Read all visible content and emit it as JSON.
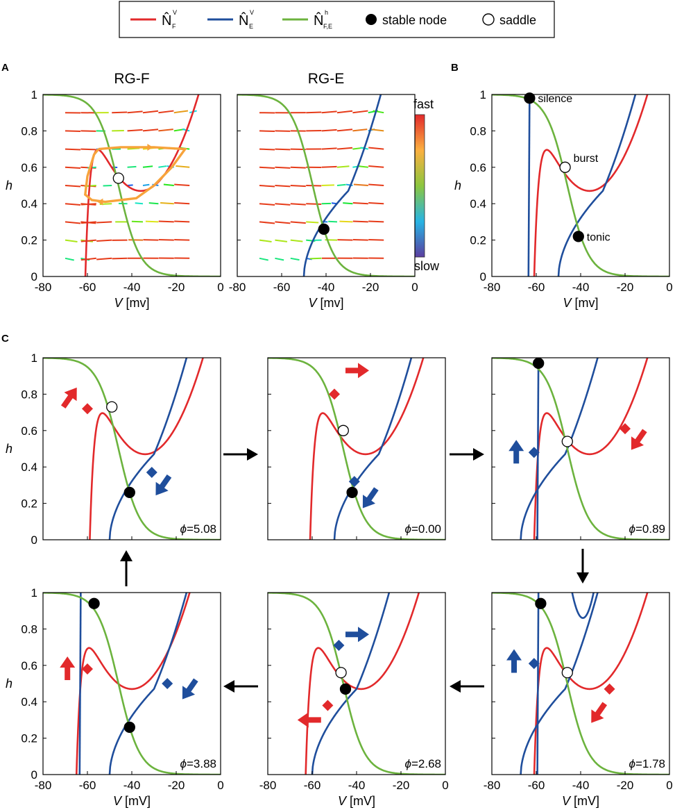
{
  "legend": [
    {
      "symbol": "N̂",
      "sup": "V",
      "sub": "F",
      "color": "#e2292b",
      "kind": "line"
    },
    {
      "symbol": "N̂",
      "sup": "V",
      "sub": "E",
      "color": "#1f4e9c",
      "kind": "line"
    },
    {
      "symbol": "N̂",
      "sup": "h",
      "sub": "F,E",
      "color": "#6cb33e",
      "kind": "line"
    },
    {
      "label": "stable node",
      "kind": "filled-circle"
    },
    {
      "label": "saddle",
      "kind": "open-circle"
    }
  ],
  "colors": {
    "red": "#e2292b",
    "blue": "#1f4e9c",
    "green": "#6cb33e",
    "orange": "#f7a33b"
  },
  "colorbar": {
    "top_label": "fast",
    "bottom_label": "slow"
  },
  "panel_letters": {
    "A": "A",
    "B": "B",
    "C": "C"
  },
  "chart_data": [
    {
      "id": "A-RG-F",
      "type": "line",
      "title": "RG-F",
      "xlabel_italic": "V",
      "xlabel_unit": " [mv]",
      "ylabel": "h",
      "xlim": [
        -80,
        0
      ],
      "ylim": [
        0,
        1
      ],
      "xticks": [
        "-80",
        "-60",
        "-40",
        "-20",
        "0"
      ],
      "yticks": [
        "0",
        "0.2",
        "0.4",
        "0.6",
        "0.8",
        "1"
      ],
      "series": [
        {
          "name": "N_F^V nullcline",
          "color": "red",
          "shift": 0
        },
        {
          "name": "N_F,E^h nullcline",
          "color": "green"
        }
      ],
      "vector_field": {
        "rows": [
          0.1,
          0.2,
          0.3,
          0.4,
          0.5,
          0.6,
          0.7,
          0.8,
          0.9
        ],
        "x_from": -70,
        "x_to": -10,
        "speed_scale": [
          "slow",
          "fast"
        ]
      },
      "trajectory": {
        "name": "bursting orbit",
        "color": "orange",
        "points": [
          [
            -55,
            0.7
          ],
          [
            -45,
            0.71
          ],
          [
            -30,
            0.71
          ],
          [
            -16,
            0.7
          ],
          [
            -22,
            0.6
          ],
          [
            -30,
            0.5
          ],
          [
            -38,
            0.43
          ],
          [
            -45,
            0.42
          ],
          [
            -52,
            0.41
          ],
          [
            -58,
            0.42
          ],
          [
            -61,
            0.45
          ],
          [
            -60,
            0.55
          ],
          [
            -57,
            0.67
          ],
          [
            -55,
            0.7
          ]
        ]
      },
      "points": [
        {
          "kind": "saddle",
          "V": -46,
          "h": 0.54
        }
      ]
    },
    {
      "id": "A-RG-E",
      "type": "line",
      "title": "RG-E",
      "xlabel_italic": "V",
      "xlabel_unit": " [mv]",
      "ylabel": "",
      "xlim": [
        -80,
        0
      ],
      "ylim": [
        0,
        1
      ],
      "xticks": [
        "-80",
        "-60",
        "-40",
        "-20",
        "0"
      ],
      "yticks": [],
      "series": [
        {
          "name": "N_E^V nullcline",
          "color": "blue",
          "shift": 0
        },
        {
          "name": "N_F,E^h nullcline",
          "color": "green"
        }
      ],
      "vector_field": {
        "rows": [
          0.1,
          0.2,
          0.3,
          0.4,
          0.5,
          0.6,
          0.7,
          0.8,
          0.9
        ],
        "x_from": -70,
        "x_to": -10,
        "speed_scale": [
          "slow",
          "fast"
        ]
      },
      "points": [
        {
          "kind": "stable",
          "V": -41,
          "h": 0.26
        }
      ]
    },
    {
      "id": "B",
      "type": "line",
      "xlabel_italic": "V",
      "xlabel_unit": " [mv]",
      "ylabel": "h",
      "xlim": [
        -80,
        0
      ],
      "ylim": [
        0,
        1
      ],
      "xticks": [
        "-80",
        "-60",
        "-40",
        "-20",
        "0"
      ],
      "yticks": [
        "0",
        "0.2",
        "0.4",
        "0.6",
        "0.8",
        "1"
      ],
      "series": [
        {
          "name": "N_F^V",
          "color": "red",
          "shift": 0
        },
        {
          "name": "N_E^V",
          "color": "blue",
          "shift": 0
        },
        {
          "name": "N_E^V (silent branch)",
          "color": "blue",
          "vert_at": -63
        },
        {
          "name": "N_F,E^h",
          "color": "green"
        }
      ],
      "points": [
        {
          "kind": "stable",
          "V": -63,
          "h": 0.98,
          "label": "silence"
        },
        {
          "kind": "saddle",
          "V": -47,
          "h": 0.6,
          "label": "burst"
        },
        {
          "kind": "stable",
          "V": -41,
          "h": 0.22,
          "label": "tonic"
        }
      ]
    },
    {
      "id": "C-5.08",
      "type": "line",
      "phi": "=5.08",
      "xlim": [
        -80,
        0
      ],
      "ylim": [
        0,
        1
      ],
      "ylabel": "h",
      "yticks": [
        "0",
        "0.2",
        "0.4",
        "0.6",
        "0.8",
        "1"
      ],
      "xticks": [],
      "series": [
        {
          "name": "N_F^V",
          "color": "red",
          "shift": 2
        },
        {
          "name": "N_E^V",
          "color": "blue",
          "shift": 0
        },
        {
          "name": "N_F,E^h",
          "color": "green"
        }
      ],
      "points": [
        {
          "kind": "saddle",
          "V": -49,
          "h": 0.73
        },
        {
          "kind": "stable",
          "V": -41,
          "h": 0.26
        }
      ],
      "diamonds": [
        {
          "color": "red",
          "V": -60,
          "h": 0.72
        },
        {
          "color": "blue",
          "V": -31,
          "h": 0.37
        }
      ],
      "arrows": [
        {
          "color": "red",
          "V": -68,
          "h": 0.78,
          "dir": "up-right"
        },
        {
          "color": "blue",
          "V": -26,
          "h": 0.3,
          "dir": "down-left"
        }
      ]
    },
    {
      "id": "C-0.00",
      "type": "line",
      "phi": "=0.00",
      "xlim": [
        -80,
        0
      ],
      "ylim": [
        0,
        1
      ],
      "yticks": [],
      "xticks": [],
      "series": [
        {
          "name": "N_F^V",
          "color": "red",
          "shift": 0
        },
        {
          "name": "N_E^V",
          "color": "blue",
          "shift": 0
        },
        {
          "name": "N_F,E^h",
          "color": "green"
        }
      ],
      "points": [
        {
          "kind": "saddle",
          "V": -46,
          "h": 0.6
        },
        {
          "kind": "stable",
          "V": -42,
          "h": 0.26
        }
      ],
      "diamonds": [
        {
          "color": "red",
          "V": -50,
          "h": 0.8
        },
        {
          "color": "blue",
          "V": -41,
          "h": 0.32
        }
      ],
      "arrows": [
        {
          "color": "red",
          "V": -40,
          "h": 0.93,
          "dir": "right"
        },
        {
          "color": "blue",
          "V": -34,
          "h": 0.23,
          "dir": "down-left"
        }
      ]
    },
    {
      "id": "C-0.89",
      "type": "line",
      "phi": "=0.89",
      "xlim": [
        -80,
        0
      ],
      "ylim": [
        0,
        1
      ],
      "yticks": [],
      "xticks": [],
      "series": [
        {
          "name": "N_F^V",
          "color": "red",
          "shift": 0
        },
        {
          "name": "N_E^V",
          "color": "blue",
          "shift": -17
        },
        {
          "name": "N_E^V (silent branch)",
          "color": "blue",
          "vert_at": -59
        },
        {
          "name": "N_F,E^h",
          "color": "green"
        }
      ],
      "points": [
        {
          "kind": "stable",
          "V": -59,
          "h": 0.97
        },
        {
          "kind": "saddle",
          "V": -46,
          "h": 0.54
        }
      ],
      "diamonds": [
        {
          "color": "red",
          "V": -20,
          "h": 0.61
        },
        {
          "color": "blue",
          "V": -61,
          "h": 0.48
        }
      ],
      "arrows": [
        {
          "color": "red",
          "V": -14,
          "h": 0.55,
          "dir": "down-left"
        },
        {
          "color": "blue",
          "V": -69,
          "h": 0.48,
          "dir": "up"
        }
      ]
    },
    {
      "id": "C-3.88",
      "type": "line",
      "phi": "=3.88",
      "xlim": [
        -80,
        0
      ],
      "ylim": [
        0,
        1
      ],
      "ylabel": "h",
      "xlabel_italic": "V",
      "xlabel_unit": " [mV]",
      "yticks": [
        "0",
        "0.2",
        "0.4",
        "0.6",
        "0.8",
        "1"
      ],
      "xticks": [
        "-80",
        "-60",
        "-40",
        "-20",
        "0"
      ],
      "series": [
        {
          "name": "N_F^V",
          "color": "red",
          "shift": -4
        },
        {
          "name": "N_E^V",
          "color": "blue",
          "shift": 0
        },
        {
          "name": "N_E^V (silent branch)",
          "color": "blue",
          "vert_at": -63
        },
        {
          "name": "N_F,E^h",
          "color": "green"
        }
      ],
      "points": [
        {
          "kind": "stable",
          "V": -57,
          "h": 0.94
        },
        {
          "kind": "stable",
          "V": -41,
          "h": 0.26
        }
      ],
      "diamonds": [
        {
          "color": "red",
          "V": -60,
          "h": 0.58
        },
        {
          "color": "blue",
          "V": -24,
          "h": 0.5
        }
      ],
      "arrows": [
        {
          "color": "red",
          "V": -69,
          "h": 0.58,
          "dir": "up"
        },
        {
          "color": "blue",
          "V": -14,
          "h": 0.47,
          "dir": "down-left"
        }
      ]
    },
    {
      "id": "C-2.68",
      "type": "line",
      "phi": "=2.68",
      "xlim": [
        -80,
        0
      ],
      "ylim": [
        0,
        1
      ],
      "xlabel_italic": "V",
      "xlabel_unit": " [mV]",
      "yticks": [],
      "xticks": [
        "-80",
        "-60",
        "-40",
        "-20",
        "0"
      ],
      "series": [
        {
          "name": "N_F^V",
          "color": "red",
          "shift": -2
        },
        {
          "name": "N_E^V",
          "color": "blue",
          "shift": -10
        },
        {
          "name": "N_F,E^h",
          "color": "green"
        }
      ],
      "points": [
        {
          "kind": "saddle",
          "V": -47,
          "h": 0.56
        },
        {
          "kind": "stable",
          "V": -45,
          "h": 0.47
        }
      ],
      "diamonds": [
        {
          "color": "blue",
          "V": -48,
          "h": 0.71
        },
        {
          "color": "red",
          "V": -53,
          "h": 0.38
        }
      ],
      "arrows": [
        {
          "color": "blue",
          "V": -40,
          "h": 0.77,
          "dir": "right"
        },
        {
          "color": "red",
          "V": -61,
          "h": 0.3,
          "dir": "left"
        }
      ]
    },
    {
      "id": "C-1.78",
      "type": "line",
      "phi": "=1.78",
      "xlim": [
        -80,
        0
      ],
      "ylim": [
        0,
        1
      ],
      "xlabel_italic": "V",
      "xlabel_unit": " [mV]",
      "yticks": [],
      "xticks": [
        "-80",
        "-60",
        "-40",
        "-20",
        "0"
      ],
      "series": [
        {
          "name": "N_F^V",
          "color": "red",
          "shift": 0
        },
        {
          "name": "N_E^V",
          "color": "blue",
          "shift": -17
        },
        {
          "name": "N_E^V (upper branch)",
          "color": "blue",
          "ushape": true
        },
        {
          "name": "N_E^V (silent branch)",
          "color": "blue",
          "vert_at": -59
        },
        {
          "name": "N_F,E^h",
          "color": "green"
        }
      ],
      "points": [
        {
          "kind": "stable",
          "V": -58,
          "h": 0.94
        },
        {
          "kind": "saddle",
          "V": -46,
          "h": 0.56
        }
      ],
      "diamonds": [
        {
          "color": "blue",
          "V": -61,
          "h": 0.61
        },
        {
          "color": "red",
          "V": -27,
          "h": 0.47
        }
      ],
      "arrows": [
        {
          "color": "blue",
          "V": -70,
          "h": 0.62,
          "dir": "up"
        },
        {
          "color": "red",
          "V": -32,
          "h": 0.34,
          "dir": "down-left"
        }
      ]
    }
  ],
  "phi_symbol": "ϕ"
}
